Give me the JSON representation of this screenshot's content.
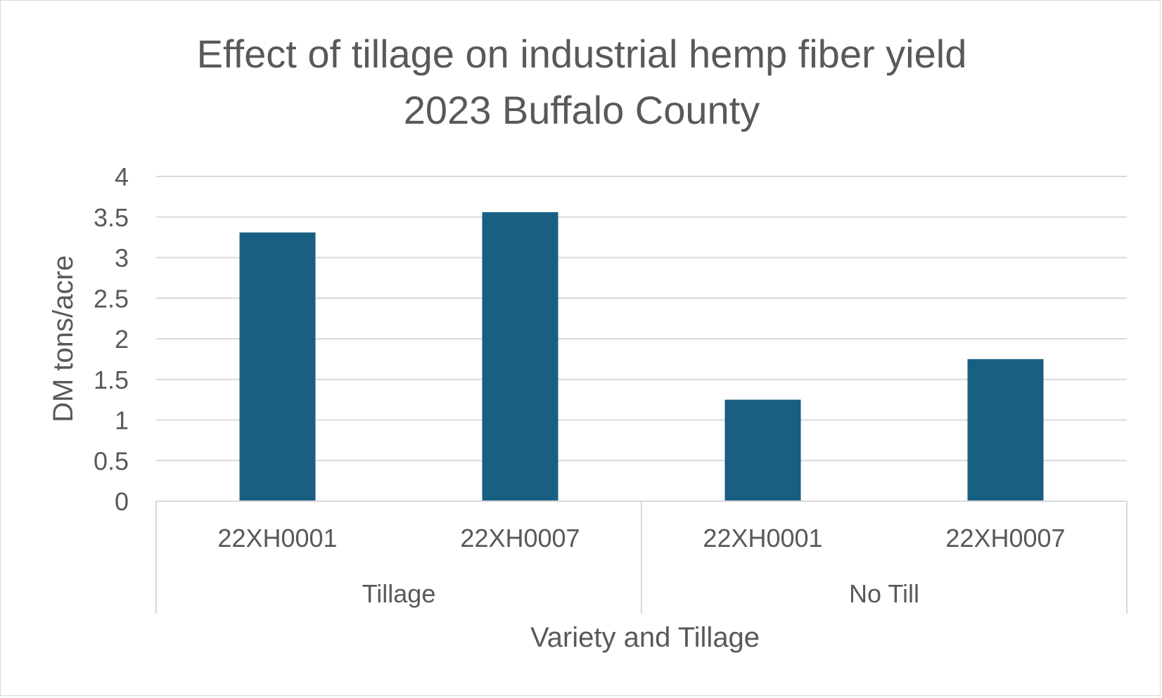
{
  "chart_data": {
    "type": "bar",
    "title_lines": [
      "Effect of tillage on industrial hemp fiber yield",
      "2023 Buffalo County"
    ],
    "xlabel": "Variety and Tillage",
    "ylabel": "DM  tons/acre",
    "ylim": [
      0,
      4
    ],
    "yticks": [
      "0",
      "0.5",
      "1",
      "1.5",
      "2",
      "2.5",
      "3",
      "3.5",
      "4"
    ],
    "groups": [
      {
        "label": "Tillage",
        "categories": [
          "22XH0001",
          "22XH0007"
        ],
        "values": [
          3.31,
          3.56
        ]
      },
      {
        "label": "No Till",
        "categories": [
          "22XH0001",
          "22XH0007"
        ],
        "values": [
          1.25,
          1.75
        ]
      }
    ],
    "grid": true,
    "legend": "none",
    "bar_color": "#185F82",
    "gridline_color": "#d9d9d9",
    "text_color": "#595959"
  }
}
